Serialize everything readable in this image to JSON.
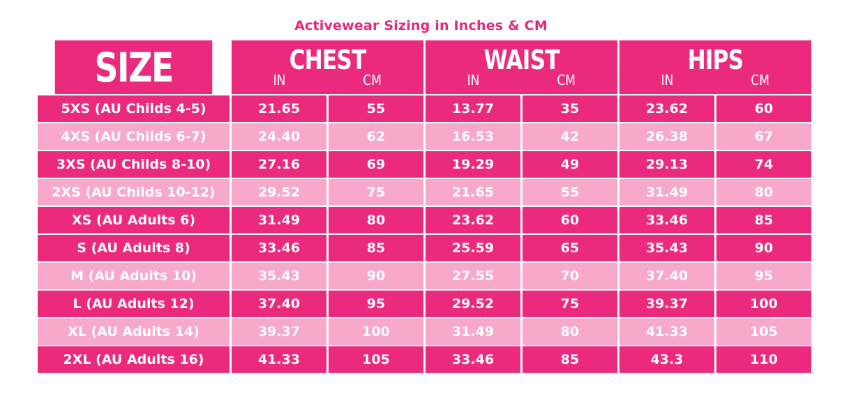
{
  "title": "Activewear Sizing in Inches & CM",
  "header": {
    "size_label": "SIZE",
    "groups": [
      {
        "label": "CHEST",
        "unit_in": "IN",
        "unit_cm": "CM"
      },
      {
        "label": "WAIST",
        "unit_in": "IN",
        "unit_cm": "CM"
      },
      {
        "label": "HIPS",
        "unit_in": "IN",
        "unit_cm": "CM"
      }
    ]
  },
  "colors": {
    "title": "#e5287c",
    "dark_row": "#ec2a7d",
    "light_row": "#f8a9cb",
    "text": "#ffffff"
  },
  "rows": [
    {
      "size": "5XS (AU Childs 4-5)",
      "chest_in": "21.65",
      "chest_cm": "55",
      "waist_in": "13.77",
      "waist_cm": "35",
      "hips_in": "23.62",
      "hips_cm": "60",
      "shade": "dark"
    },
    {
      "size": "4XS (AU Childs 6-7)",
      "chest_in": "24.40",
      "chest_cm": "62",
      "waist_in": "16.53",
      "waist_cm": "42",
      "hips_in": "26.38",
      "hips_cm": "67",
      "shade": "light"
    },
    {
      "size": "3XS (AU Childs 8-10)",
      "chest_in": "27.16",
      "chest_cm": "69",
      "waist_in": "19.29",
      "waist_cm": "49",
      "hips_in": "29.13",
      "hips_cm": "74",
      "shade": "dark"
    },
    {
      "size": "2XS (AU Childs 10-12)",
      "chest_in": "29.52",
      "chest_cm": "75",
      "waist_in": "21.65",
      "waist_cm": "55",
      "hips_in": "31.49",
      "hips_cm": "80",
      "shade": "light"
    },
    {
      "size": "XS (AU Adults 6)",
      "chest_in": "31.49",
      "chest_cm": "80",
      "waist_in": "23.62",
      "waist_cm": "60",
      "hips_in": "33.46",
      "hips_cm": "85",
      "shade": "dark"
    },
    {
      "size": "S (AU Adults 8)",
      "chest_in": "33.46",
      "chest_cm": "85",
      "waist_in": "25.59",
      "waist_cm": "65",
      "hips_in": "35.43",
      "hips_cm": "90",
      "shade": "dark"
    },
    {
      "size": "M (AU Adults 10)",
      "chest_in": "35.43",
      "chest_cm": "90",
      "waist_in": "27.55",
      "waist_cm": "70",
      "hips_in": "37.40",
      "hips_cm": "95",
      "shade": "light"
    },
    {
      "size": "L (AU Adults 12)",
      "chest_in": "37.40",
      "chest_cm": "95",
      "waist_in": "29.52",
      "waist_cm": "75",
      "hips_in": "39.37",
      "hips_cm": "100",
      "shade": "dark"
    },
    {
      "size": "XL (AU Adults 14)",
      "chest_in": "39.37",
      "chest_cm": "100",
      "waist_in": "31.49",
      "waist_cm": "80",
      "hips_in": "41.33",
      "hips_cm": "105",
      "shade": "light"
    },
    {
      "size": "2XL (AU Adults 16)",
      "chest_in": "41.33",
      "chest_cm": "105",
      "waist_in": "33.46",
      "waist_cm": "85",
      "hips_in": "43.3",
      "hips_cm": "110",
      "shade": "dark"
    }
  ]
}
